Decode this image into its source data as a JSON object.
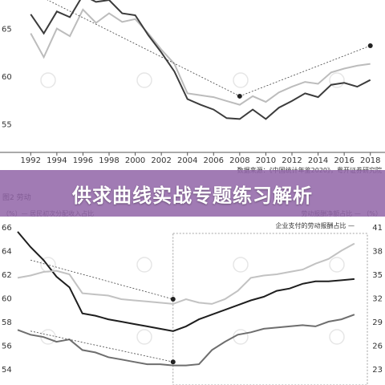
{
  "banner": {
    "title": "供求曲线实战专题练习解析"
  },
  "chart_data": [
    {
      "type": "line",
      "title": "",
      "xlabel": "",
      "ylabel": "",
      "x_ticks": [
        "1992",
        "1994",
        "1996",
        "1998",
        "2000",
        "2002",
        "2004",
        "2006",
        "2008",
        "2010",
        "2012",
        "2014",
        "2016",
        "2018"
      ],
      "y_ticks": [
        55,
        60,
        65
      ],
      "xlim": [
        1991,
        2019
      ],
      "ylim": [
        52,
        68
      ],
      "source_note": "数据来源：《中国统计年鉴2020》，粤开证券研究院",
      "series": [
        {
          "color": "#3c3c3c",
          "x": [
            1992,
            1993,
            1994,
            1995,
            1996,
            1997,
            1998,
            1999,
            2000,
            2001,
            2002,
            2003,
            2004,
            2005,
            2006,
            2007,
            2008,
            2009,
            2010,
            2011,
            2012,
            2013,
            2014,
            2015,
            2016,
            2017,
            2018
          ],
          "values": [
            66.5,
            64.5,
            66.8,
            66.2,
            68.5,
            67.8,
            68.0,
            66.6,
            66.4,
            64.3,
            62.5,
            60.5,
            57.6,
            57.0,
            56.5,
            55.6,
            55.5,
            56.5,
            55.5,
            56.7,
            57.4,
            58.2,
            57.8,
            59.1,
            59.3,
            58.9,
            59.6
          ]
        },
        {
          "color": "#bcbcbc",
          "x": [
            1992,
            1993,
            1994,
            1995,
            1996,
            1997,
            1998,
            1999,
            2000,
            2001,
            2002,
            2003,
            2004,
            2005,
            2006,
            2007,
            2008,
            2009,
            2010,
            2011,
            2012,
            2013,
            2014,
            2015,
            2016,
            2017,
            2018
          ],
          "values": [
            64.5,
            62.0,
            65.0,
            64.2,
            67.0,
            65.6,
            66.6,
            65.7,
            66.0,
            64.5,
            62.8,
            61.3,
            58.2,
            58.0,
            57.8,
            57.4,
            57.0,
            57.9,
            57.3,
            58.3,
            58.9,
            59.4,
            59.2,
            60.4,
            60.8,
            61.1,
            61.3
          ]
        }
      ],
      "trend_lines": [
        {
          "x": [
            1993,
            2008
          ],
          "values": [
            68.2,
            57.9
          ]
        },
        {
          "x": [
            2008,
            2018
          ],
          "values": [
            57.9,
            63.2
          ]
        }
      ]
    },
    {
      "type": "line",
      "title": "图2 劳动",
      "left_axis_label": "（%）— 居民初次分配收入占比",
      "right_axis_label": "劳动报酬净额占比 — （%）",
      "right_axis_label2": "企业支付的劳动报酬占比 —",
      "y_left_ticks": [
        54,
        56,
        58,
        60,
        62,
        64,
        66
      ],
      "y_right_ticks": [
        23,
        26,
        29,
        32,
        35,
        38,
        41
      ],
      "ylim_left": [
        53.8,
        66.2
      ],
      "ylim_right": [
        22.7,
        41.3
      ],
      "xlim": [
        1992,
        2019
      ],
      "series": [
        {
          "name": "居民初次分配收入占比",
          "color": "#1e1e1e",
          "x": [
            1992,
            1993,
            1994,
            1995,
            1996,
            1997,
            1998,
            1999,
            2000,
            2001,
            2002,
            2003,
            2004,
            2005,
            2006,
            2007,
            2008,
            2009,
            2010,
            2011,
            2012,
            2013,
            2014,
            2015,
            2016,
            2017,
            2018
          ],
          "values": [
            65.6,
            64.3,
            63.2,
            61.8,
            60.9,
            58.7,
            58.5,
            58.2,
            58.0,
            57.8,
            57.6,
            57.4,
            57.2,
            57.6,
            58.2,
            58.6,
            59.0,
            59.4,
            59.8,
            60.1,
            60.6,
            60.8,
            61.2,
            61.4,
            61.4,
            61.5,
            61.6
          ]
        },
        {
          "name": "劳动报酬净额占比",
          "color": "#c2c2c2",
          "x": [
            1992,
            1993,
            1994,
            1995,
            1996,
            1997,
            1998,
            1999,
            2000,
            2001,
            2002,
            2003,
            2004,
            2005,
            2006,
            2007,
            2008,
            2009,
            2010,
            2011,
            2012,
            2013,
            2014,
            2015,
            2016,
            2017,
            2018
          ],
          "values": [
            61.7,
            61.9,
            62.2,
            62.3,
            62.0,
            60.4,
            60.3,
            60.2,
            59.9,
            59.8,
            59.7,
            59.6,
            59.5,
            59.9,
            59.6,
            59.5,
            59.9,
            60.6,
            61.7,
            61.9,
            62.0,
            62.2,
            62.4,
            62.9,
            63.3,
            64.0,
            64.6
          ]
        },
        {
          "name": "企业支付的劳动报酬占比",
          "color": "#6e6e6e",
          "x": [
            1992,
            1993,
            1994,
            1995,
            1996,
            1997,
            1998,
            1999,
            2000,
            2001,
            2002,
            2003,
            2004,
            2005,
            2006,
            2007,
            2008,
            2009,
            2010,
            2011,
            2012,
            2013,
            2014,
            2015,
            2016,
            2017,
            2018
          ],
          "values": [
            57.3,
            56.9,
            56.7,
            56.3,
            56.5,
            55.6,
            55.4,
            55.0,
            54.8,
            54.6,
            54.4,
            54.4,
            54.3,
            54.3,
            54.4,
            55.6,
            56.3,
            56.9,
            57.1,
            57.4,
            57.5,
            57.6,
            57.7,
            57.6,
            58.0,
            58.2,
            58.6
          ]
        }
      ],
      "trend_lines": [
        {
          "x": [
            1993,
            2004
          ],
          "values": [
            63.2,
            59.9
          ]
        },
        {
          "x": [
            1993,
            2004
          ],
          "values": [
            57.2,
            54.6
          ]
        }
      ]
    }
  ]
}
